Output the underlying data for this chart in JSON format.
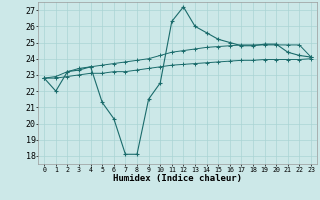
{
  "title": "",
  "xlabel": "Humidex (Indice chaleur)",
  "background_color": "#cce8e8",
  "line_color": "#1a6b6b",
  "xlim": [
    -0.5,
    23.5
  ],
  "ylim": [
    17.5,
    27.5
  ],
  "yticks": [
    18,
    19,
    20,
    21,
    22,
    23,
    24,
    25,
    26,
    27
  ],
  "xticks": [
    0,
    1,
    2,
    3,
    4,
    5,
    6,
    7,
    8,
    9,
    10,
    11,
    12,
    13,
    14,
    15,
    16,
    17,
    18,
    19,
    20,
    21,
    22,
    23
  ],
  "line1_x": [
    0,
    1,
    2,
    3,
    4,
    5,
    6,
    7,
    8,
    9,
    10,
    11,
    12,
    13,
    14,
    15,
    16,
    17,
    18,
    19,
    20,
    21,
    22,
    23
  ],
  "line1_y": [
    22.8,
    22.0,
    23.2,
    23.3,
    23.5,
    21.3,
    20.3,
    18.1,
    18.1,
    21.5,
    22.5,
    26.3,
    27.2,
    26.0,
    25.6,
    25.2,
    25.0,
    24.8,
    24.8,
    24.9,
    24.9,
    24.4,
    24.2,
    24.1
  ],
  "line2_x": [
    0,
    1,
    2,
    3,
    4,
    5,
    6,
    7,
    8,
    9,
    10,
    11,
    12,
    13,
    14,
    15,
    16,
    17,
    18,
    19,
    20,
    21,
    22,
    23
  ],
  "line2_y": [
    22.8,
    22.9,
    23.2,
    23.4,
    23.5,
    23.6,
    23.7,
    23.8,
    23.9,
    24.0,
    24.2,
    24.4,
    24.5,
    24.6,
    24.7,
    24.75,
    24.8,
    24.85,
    24.85,
    24.85,
    24.85,
    24.85,
    24.85,
    24.1
  ],
  "line3_x": [
    0,
    1,
    2,
    3,
    4,
    5,
    6,
    7,
    8,
    9,
    10,
    11,
    12,
    13,
    14,
    15,
    16,
    17,
    18,
    19,
    20,
    21,
    22,
    23
  ],
  "line3_y": [
    22.8,
    22.8,
    22.9,
    23.0,
    23.1,
    23.1,
    23.2,
    23.2,
    23.3,
    23.4,
    23.5,
    23.6,
    23.65,
    23.7,
    23.75,
    23.8,
    23.85,
    23.9,
    23.9,
    23.95,
    23.95,
    23.95,
    23.95,
    24.0
  ],
  "grid_color": "#aad4d4",
  "xlabel_fontsize": 6.5,
  "ytick_fontsize": 6.0,
  "xtick_fontsize": 4.8
}
